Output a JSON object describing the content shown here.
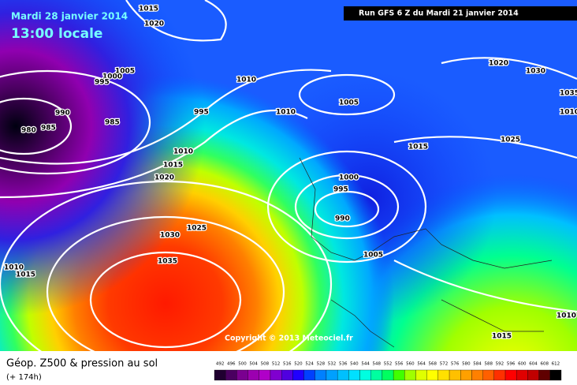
{
  "header": {
    "date": "Mardi 28 janvier 2014",
    "time": "13:00 locale",
    "run": "Run GFS 6 Z du Mardi 21 janvier 2014"
  },
  "copyright": "Copyright © 2013 Meteociel.fr",
  "footer": {
    "title": "Géop. Z500 & pression au sol",
    "lead": "(+ 174h)"
  },
  "scale_labels": [
    "492",
    "496",
    "500",
    "504",
    "508",
    "512",
    "516",
    "520",
    "524",
    "528",
    "532",
    "536",
    "540",
    "544",
    "548",
    "552",
    "556",
    "560",
    "564",
    "568",
    "572",
    "576",
    "580",
    "584",
    "588",
    "592",
    "596",
    "600",
    "604",
    "608",
    "612"
  ],
  "isobar_labels": [
    "1015",
    "1020",
    "1005",
    "1000",
    "995",
    "980",
    "985",
    "990",
    "985",
    "1010",
    "995",
    "1010",
    "1010",
    "1015",
    "1020",
    "1030",
    "1025",
    "1035",
    "1010",
    "1015",
    "1005",
    "1000",
    "995",
    "990",
    "1005",
    "1015",
    "1020",
    "1030",
    "1035",
    "1025",
    "1010",
    "1015",
    "1010"
  ]
}
